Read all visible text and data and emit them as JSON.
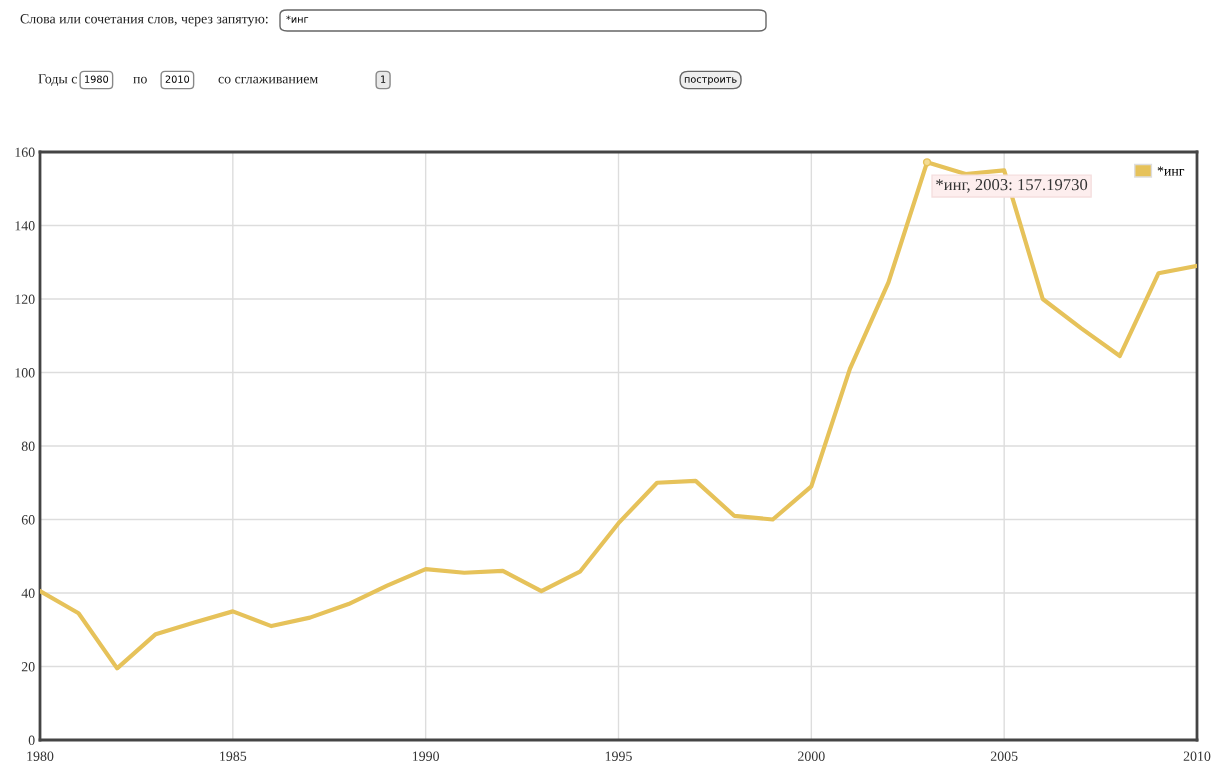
{
  "chart_data": {
    "type": "line",
    "x": [
      1980,
      1981,
      1982,
      1983,
      1984,
      1985,
      1986,
      1987,
      1988,
      1989,
      1990,
      1991,
      1992,
      1993,
      1994,
      1995,
      1996,
      1997,
      1998,
      1999,
      2000,
      2001,
      2002,
      2003,
      2004,
      2005,
      2006,
      2007,
      2008,
      2009,
      2010
    ],
    "series": [
      {
        "name": "*инг",
        "color": "#e6c25a",
        "values": [
          40.5,
          34.5,
          19.5,
          28.8,
          32,
          35,
          31,
          33.3,
          37,
          42,
          46.5,
          45.5,
          46,
          40.5,
          45.8,
          59,
          70,
          70.5,
          61,
          60,
          69,
          101,
          124.5,
          157.2,
          154,
          155,
          120,
          112,
          104.5,
          127,
          129
        ]
      }
    ],
    "xlim": [
      1980,
      2010
    ],
    "xticks": [
      1980,
      1985,
      1990,
      1995,
      2000,
      2005,
      2010
    ],
    "ylim": [
      0,
      160
    ],
    "yticks": [
      0,
      20,
      40,
      60,
      80,
      100,
      120,
      140,
      160
    ],
    "grid": true,
    "legend": "top right",
    "marker": "none",
    "line_style": "solid",
    "annotations": [
      "Слова или сочетания слов, через запятую:",
      "*инг",
      "Годы с",
      "1980",
      "по",
      "2010",
      "со сглаживанием",
      "1",
      "построить",
      {
        "text": "*инг, 2003: 157.19730",
        "x": 2003,
        "y": 157.1973
      }
    ]
  }
}
